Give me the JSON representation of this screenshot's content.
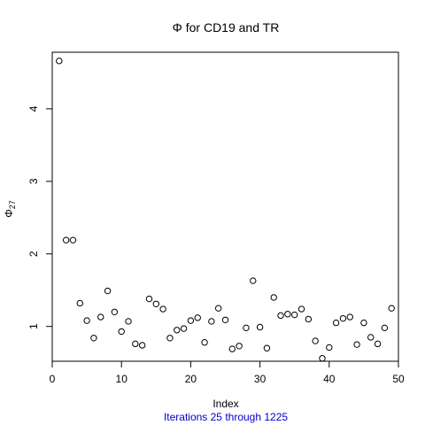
{
  "chart_data": {
    "type": "scatter",
    "title": "Φ  for  CD19  and  TR",
    "xlabel": "Index",
    "ylabel_main": "Φ",
    "ylabel_sub": "27",
    "subtitle": "Iterations 25 through 1225",
    "subtitle_color": "#0000cc",
    "point_color": "#000000",
    "xlim": [
      0,
      50
    ],
    "ylim": [
      0.52,
      4.78
    ],
    "x_ticks": [
      0,
      10,
      20,
      30,
      40,
      50
    ],
    "y_ticks": [
      1,
      2,
      3,
      4
    ],
    "x_tick_labels": [
      "0",
      "10",
      "20",
      "30",
      "40",
      "50"
    ],
    "y_tick_labels": [
      "1",
      "2",
      "3",
      "4"
    ],
    "x": [
      1,
      2,
      3,
      4,
      5,
      6,
      7,
      8,
      9,
      10,
      11,
      12,
      13,
      14,
      15,
      16,
      17,
      18,
      19,
      20,
      21,
      22,
      23,
      24,
      25,
      26,
      27,
      28,
      29,
      30,
      31,
      32,
      33,
      34,
      35,
      36,
      37,
      38,
      39,
      40,
      41,
      42,
      43,
      44,
      45,
      46,
      47,
      48,
      49
    ],
    "y": [
      4.66,
      2.19,
      2.19,
      1.32,
      1.08,
      0.84,
      1.13,
      1.49,
      1.2,
      0.93,
      1.07,
      0.76,
      0.74,
      1.38,
      1.31,
      1.24,
      0.84,
      0.95,
      0.97,
      1.08,
      1.12,
      0.78,
      1.07,
      1.25,
      1.09,
      0.69,
      0.73,
      0.98,
      1.63,
      0.99,
      0.7,
      1.4,
      1.15,
      1.17,
      1.16,
      1.24,
      1.1,
      0.8,
      0.56,
      0.71,
      1.05,
      1.11,
      1.13,
      0.75,
      1.05,
      0.85,
      0.76,
      0.98,
      1.25
    ]
  }
}
